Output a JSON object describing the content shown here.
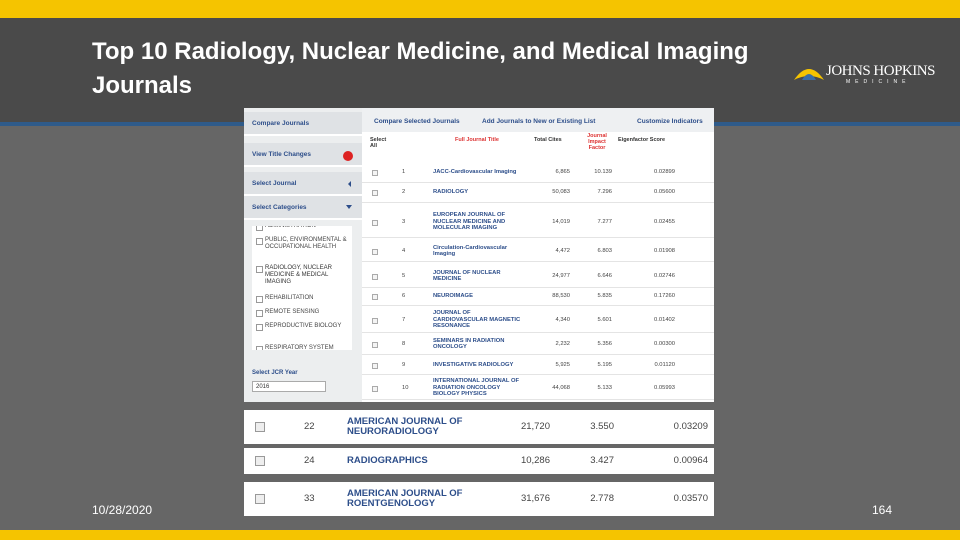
{
  "slide": {
    "title_line1": "Top 10 Radiology, Nuclear Medicine, and Medical Imaging",
    "title_line2": "Journals",
    "logo_name": "JOHNS HOPKINS",
    "logo_sub": "MEDICINE",
    "date": "10/28/2020",
    "page_number": "164"
  },
  "sidebar": {
    "items": [
      "Compare Journals",
      "View Title Changes",
      "Select Journal",
      "Select Categories"
    ],
    "categories": [
      "ADMINISTRATION",
      "PUBLIC, ENVIRONMENTAL & OCCUPATIONAL HEALTH",
      "RADIOLOGY, NUCLEAR MEDICINE & MEDICAL IMAGING",
      "REHABILITATION",
      "REMOTE SENSING",
      "REPRODUCTIVE BIOLOGY",
      "RESPIRATORY SYSTEM"
    ],
    "year_label": "Select JCR Year",
    "year_value": "2016"
  },
  "toolbar": [
    "Compare Selected Journals",
    "Add Journals to New or Existing List",
    "Customize Indicators"
  ],
  "table": {
    "columns": [
      "Select All",
      "Full Journal Title",
      "Total Cites",
      "Journal Impact Factor",
      "Eigenfactor Score"
    ],
    "rows": [
      [
        "1",
        "JACC-Cardiovascular Imaging",
        "6,865",
        "10.139",
        "0.02899"
      ],
      [
        "2",
        "RADIOLOGY",
        "50,083",
        "7.296",
        "0.05600"
      ],
      [
        "3",
        "EUROPEAN JOURNAL OF NUCLEAR MEDICINE AND MOLECULAR IMAGING",
        "14,019",
        "7.277",
        "0.02455"
      ],
      [
        "4",
        "Circulation-Cardiovascular Imaging",
        "4,472",
        "6.803",
        "0.01908"
      ],
      [
        "5",
        "JOURNAL OF NUCLEAR MEDICINE",
        "24,977",
        "6.646",
        "0.02746"
      ],
      [
        "6",
        "NEUROIMAGE",
        "88,530",
        "5.835",
        "0.17260"
      ],
      [
        "7",
        "JOURNAL OF CARDIOVASCULAR MAGNETIC RESONANCE",
        "4,340",
        "5.601",
        "0.01402"
      ],
      [
        "8",
        "SEMINARS IN RADIATION ONCOLOGY",
        "2,232",
        "5.356",
        "0.00300"
      ],
      [
        "9",
        "INVESTIGATIVE RADIOLOGY",
        "5,925",
        "5.195",
        "0.01120"
      ],
      [
        "10",
        "INTERNATIONAL JOURNAL OF RADIATION ONCOLOGY BIOLOGY PHYSICS",
        "44,068",
        "5.133",
        "0.05993"
      ]
    ]
  },
  "extra_rows": [
    [
      "22",
      "AMERICAN JOURNAL OF NEURORADIOLOGY",
      "21,720",
      "3.550",
      "0.03209"
    ],
    [
      "24",
      "RADIOGRAPHICS",
      "10,286",
      "3.427",
      "0.00964"
    ],
    [
      "33",
      "AMERICAN JOURNAL OF ROENTGENOLOGY",
      "31,676",
      "2.778",
      "0.03570"
    ]
  ]
}
